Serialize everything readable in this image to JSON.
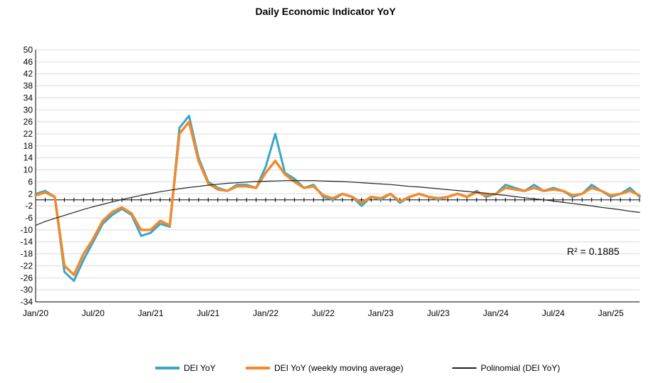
{
  "chart_data": {
    "type": "line",
    "title": "Daily Economic Indicator YoY",
    "xlabel": "",
    "ylabel": "",
    "ylim": [
      -34,
      50
    ],
    "yticks": [
      50,
      46,
      42,
      38,
      34,
      30,
      26,
      22,
      18,
      14,
      10,
      6,
      2,
      -2,
      -6,
      -10,
      -14,
      -18,
      -22,
      -26,
      -30,
      -34
    ],
    "x_tick_labels": [
      "Jan/20",
      "Jul/20",
      "Jan/21",
      "Jul/21",
      "Jan/22",
      "Jul/22",
      "Jan/23",
      "Jul/23",
      "Jan/24",
      "Jul/24",
      "Jan/25"
    ],
    "x": [
      "Jan/20",
      "Feb/20",
      "Mar/20",
      "Apr/20",
      "May/20",
      "Jun/20",
      "Jul/20",
      "Aug/20",
      "Sep/20",
      "Oct/20",
      "Nov/20",
      "Dec/20",
      "Jan/21",
      "Feb/21",
      "Mar/21",
      "Apr/21",
      "May/21",
      "Jun/21",
      "Jul/21",
      "Aug/21",
      "Sep/21",
      "Oct/21",
      "Nov/21",
      "Dec/21",
      "Jan/22",
      "Feb/22",
      "Mar/22",
      "Apr/22",
      "May/22",
      "Jun/22",
      "Jul/22",
      "Aug/22",
      "Sep/22",
      "Oct/22",
      "Nov/22",
      "Dec/22",
      "Jan/23",
      "Feb/23",
      "Mar/23",
      "Apr/23",
      "May/23",
      "Jun/23",
      "Jul/23",
      "Aug/23",
      "Sep/23",
      "Oct/23",
      "Nov/23",
      "Dec/23",
      "Jan/24",
      "Feb/24",
      "Mar/24",
      "Apr/24",
      "May/24",
      "Jun/24",
      "Jul/24",
      "Aug/24",
      "Sep/24",
      "Oct/24",
      "Nov/24",
      "Dec/24",
      "Jan/25",
      "Feb/25",
      "Mar/25",
      "Apr/25"
    ],
    "series": [
      {
        "name": "DEI YoY",
        "color": "#3aa6c7",
        "values": [
          2,
          3,
          1,
          -24,
          -27,
          -20,
          -14,
          -8,
          -5,
          -3,
          -5,
          -12,
          -11,
          -8,
          -9,
          24,
          28,
          14,
          6,
          4,
          3,
          5,
          5,
          4,
          11,
          22,
          9,
          7,
          4,
          5,
          1,
          0,
          2,
          1,
          -2,
          1,
          0,
          2,
          -1,
          1,
          2,
          1,
          0,
          1,
          2,
          1,
          3,
          1,
          2,
          5,
          4,
          3,
          5,
          3,
          4,
          3,
          1,
          2,
          5,
          3,
          1,
          2,
          4,
          1
        ]
      },
      {
        "name": "DEI YoY (weekly moving average)",
        "color": "#f08a2c",
        "values": [
          1.5,
          2.5,
          1,
          -22,
          -25,
          -18,
          -13,
          -7,
          -4,
          -2.5,
          -4.5,
          -10,
          -10,
          -7,
          -8.5,
          22,
          26,
          13,
          5.5,
          3.5,
          3,
          4.5,
          4.5,
          4,
          9,
          13,
          8.5,
          6,
          4,
          4.5,
          1.5,
          0.5,
          2,
          1,
          -1,
          1,
          0.5,
          2,
          -0.5,
          1,
          2,
          1,
          0.5,
          1,
          2,
          1,
          2.5,
          1.5,
          2,
          4,
          3.5,
          3,
          4,
          3,
          3.5,
          3,
          1.5,
          2,
          4,
          3,
          1.5,
          2,
          3,
          1.5
        ]
      },
      {
        "name": "Polinomial (DEI YoY)",
        "color": "#222222",
        "values": [
          -8.5,
          -7.2,
          -6.2,
          -5.2,
          -4.2,
          -3.2,
          -2.3,
          -1.5,
          -0.7,
          0.1,
          0.8,
          1.5,
          2.1,
          2.7,
          3.2,
          3.7,
          4.1,
          4.5,
          4.9,
          5.2,
          5.5,
          5.7,
          5.9,
          6.1,
          6.2,
          6.3,
          6.4,
          6.4,
          6.4,
          6.4,
          6.3,
          6.2,
          6.1,
          5.9,
          5.7,
          5.5,
          5.3,
          5.1,
          4.8,
          4.5,
          4.3,
          4.0,
          3.7,
          3.4,
          3.1,
          2.8,
          2.5,
          2.2,
          1.8,
          1.5,
          1.1,
          0.7,
          0.3,
          0.0,
          -0.4,
          -0.8,
          -1.2,
          -1.6,
          -2.0,
          -2.5,
          -2.9,
          -3.3,
          -3.8,
          -4.2
        ]
      }
    ],
    "annotations": [
      "R² = 0.1885"
    ],
    "legend_position": "bottom",
    "grid": true
  },
  "legend_labels": [
    "DEI YoY",
    "DEI YoY (weekly moving average)",
    "Polinomial (DEI YoY)"
  ]
}
